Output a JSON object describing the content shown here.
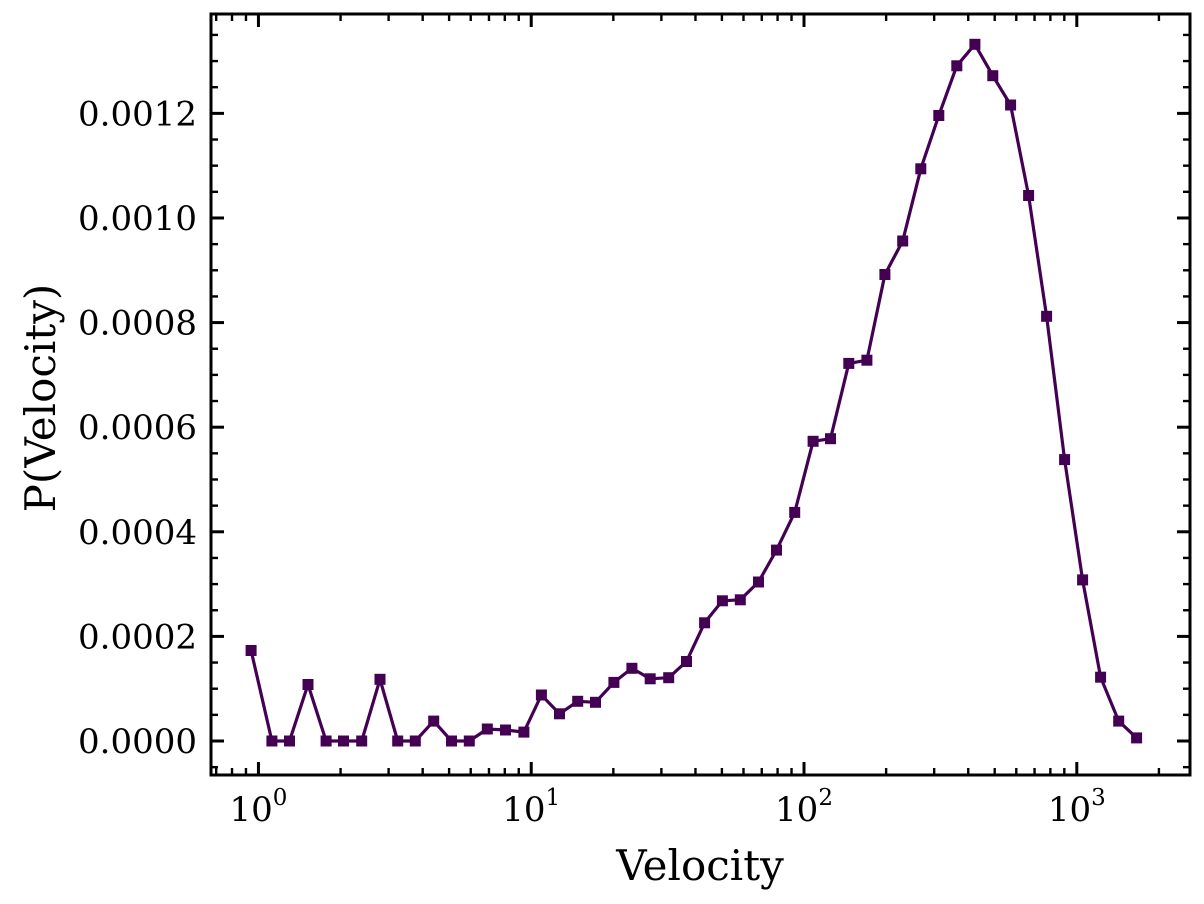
{
  "chart_data": {
    "type": "line",
    "title": "",
    "xlabel": "Velocity",
    "ylabel": "P(Velocity)",
    "xscale": "log",
    "xlim": [
      0.67,
      2600
    ],
    "ylim": [
      -6.5e-05,
      0.00139
    ],
    "x_ticks": [
      {
        "value": 1,
        "base": "10",
        "exp": "0"
      },
      {
        "value": 10,
        "base": "10",
        "exp": "1"
      },
      {
        "value": 100,
        "base": "10",
        "exp": "2"
      },
      {
        "value": 1000,
        "base": "10",
        "exp": "3"
      }
    ],
    "y_ticks": [
      {
        "value": 0.0,
        "label": "0.0000"
      },
      {
        "value": 0.0002,
        "label": "0.0002"
      },
      {
        "value": 0.0004,
        "label": "0.0004"
      },
      {
        "value": 0.0006,
        "label": "0.0006"
      },
      {
        "value": 0.0008,
        "label": "0.0008"
      },
      {
        "value": 0.001,
        "label": "0.0010"
      },
      {
        "value": 0.0012,
        "label": "0.0012"
      }
    ],
    "grid": false,
    "series": [
      {
        "name": "P(Velocity)",
        "color": "#440154",
        "marker": "square",
        "x": [
          0.94,
          1.12,
          1.3,
          1.52,
          1.77,
          2.05,
          2.39,
          2.79,
          3.24,
          3.76,
          4.39,
          5.1,
          5.93,
          6.9,
          8.05,
          9.4,
          10.9,
          12.7,
          14.8,
          17.2,
          20.1,
          23.4,
          27.3,
          31.9,
          37.1,
          43.2,
          50.2,
          58.4,
          68.1,
          79.3,
          92.4,
          108,
          125,
          146,
          170,
          198,
          230,
          268,
          312,
          363,
          423,
          492,
          572,
          666,
          775,
          902,
          1050,
          1223,
          1424,
          1657
        ],
        "values": [
          0.000173,
          0.0,
          0.0,
          0.000108,
          0.0,
          0.0,
          0.0,
          0.000118,
          0.0,
          0.0,
          3.8e-05,
          0.0,
          0.0,
          2.3e-05,
          2.1e-05,
          1.7e-05,
          8.8e-05,
          5.2e-05,
          7.6e-05,
          7.4e-05,
          0.000112,
          0.000139,
          0.000119,
          0.000121,
          0.000152,
          0.000226,
          0.000268,
          0.00027,
          0.000304,
          0.000365,
          0.000437,
          0.000573,
          0.000578,
          0.000722,
          0.000728,
          0.000892,
          0.000956,
          0.001094,
          0.001196,
          0.001291,
          0.001332,
          0.001272,
          0.001216,
          0.001043,
          0.000812,
          0.000538,
          0.000308,
          0.000122,
          3.8e-05,
          6e-06
        ]
      }
    ]
  }
}
